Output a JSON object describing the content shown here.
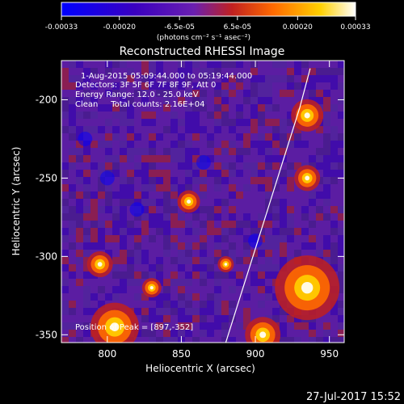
{
  "colorbar": {
    "ticks": [
      "-0.00033",
      "-0.00020",
      "-6.5e-05",
      "6.5e-05",
      "0.00020",
      "0.00033"
    ],
    "tick_values": [
      -0.00033,
      -0.0002,
      -6.5e-05,
      6.5e-05,
      0.0002,
      0.00033
    ],
    "unit_label": "(photons cm⁻² s⁻¹ asec⁻²)",
    "colors": [
      "#0000ff",
      "#3a00c0",
      "#6a1fb0",
      "#c02020",
      "#ff6a00",
      "#ffd000",
      "#ffffff"
    ]
  },
  "chart_data": {
    "type": "heatmap",
    "title": "Reconstructed RHESSI Image",
    "xlabel": "Heliocentric X (arcsec)",
    "ylabel": "Heliocentric Y (arcsec)",
    "xlim": [
      769,
      960
    ],
    "ylim": [
      -355,
      -175
    ],
    "xticks": [
      800,
      850,
      900,
      950
    ],
    "yticks": [
      -200,
      -250,
      -300,
      -350
    ],
    "annotations": [
      "1-Aug-2015 05:09:44.000 to 05:19:44.000",
      "Detectors: 3F 5F 6F 7F 8F 9F, Att 0",
      "Energy Range: 12.0 - 25.0 keV",
      "Clean     Total counts: 2.16E+04",
      "Position of Peak = [897,-352]"
    ],
    "limb_color": "#ffffff",
    "peak": [
      897,
      -352
    ]
  },
  "footer": {
    "timestamp": "27-Jul-2017 15:52"
  }
}
